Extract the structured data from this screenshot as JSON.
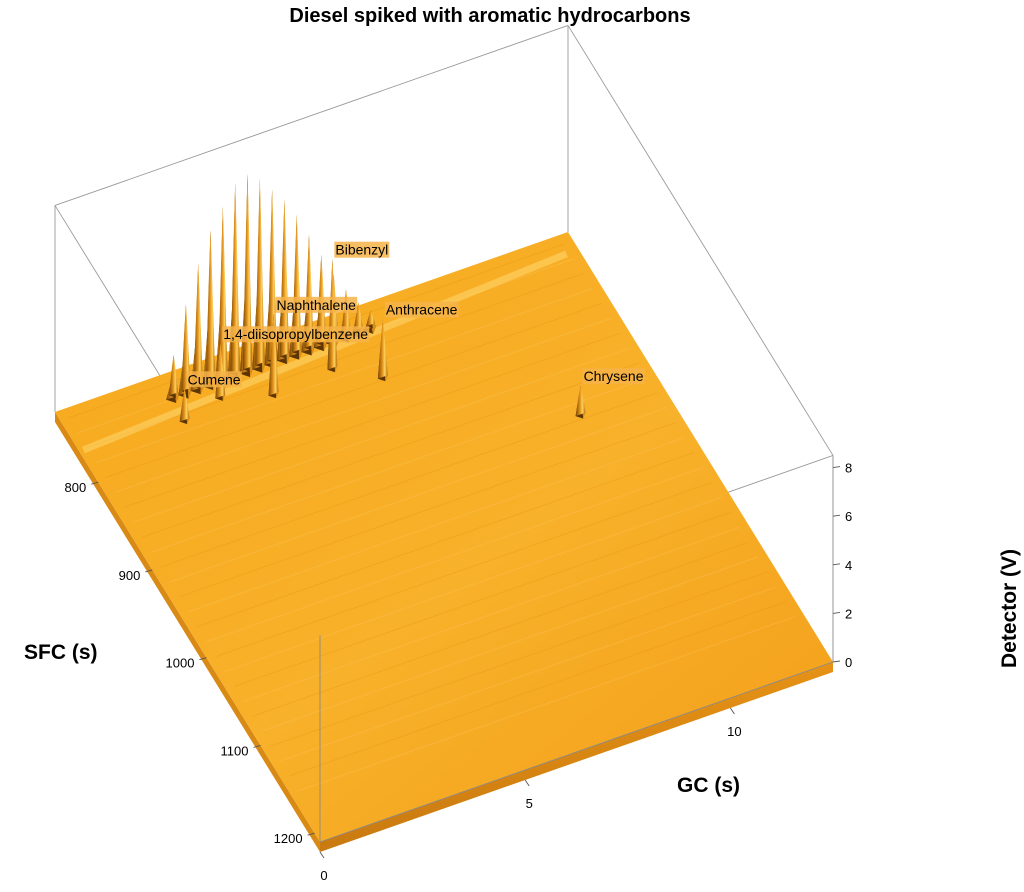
{
  "chart_data": {
    "type": "surface",
    "title": "Diesel spiked with aromatic hydrocarbons",
    "xlabel": "GC (s)",
    "ylabel": "SFC (s)",
    "zlabel": "Detector (V)",
    "x_ticks": [
      0,
      5,
      10
    ],
    "y_ticks": [
      800,
      900,
      1000,
      1100,
      1200
    ],
    "z_ticks": [
      0,
      2,
      4,
      6,
      8
    ],
    "xlim": [
      0,
      12.5
    ],
    "ylim": [
      720,
      1210
    ],
    "zlim": [
      0,
      8.5
    ],
    "surface_color": "#f5a623",
    "annotations": [
      {
        "label": "1,4-diisopropylbenzene",
        "gc": 3.5,
        "sfc": 760,
        "value": 2.2
      },
      {
        "label": "Cumene",
        "gc": 2.5,
        "sfc": 770,
        "value": 1.3
      },
      {
        "label": "Naphthalene",
        "gc": 4.6,
        "sfc": 775,
        "value": 3.3
      },
      {
        "label": "Bibenzyl",
        "gc": 6.1,
        "sfc": 770,
        "value": 4.5
      },
      {
        "label": "Anthracene",
        "gc": 7.0,
        "sfc": 795,
        "value": 2.4
      },
      {
        "label": "Chrysene",
        "gc": 10.5,
        "sfc": 895,
        "value": 1.2
      }
    ],
    "diesel_envelope": {
      "gc": [
        2.6,
        2.9,
        3.2,
        3.5,
        3.8,
        4.1,
        4.4,
        4.7,
        5.0,
        5.3,
        5.6,
        5.9,
        6.2,
        6.5,
        6.8,
        7.1,
        7.4
      ],
      "value": [
        1.6,
        3.5,
        5.0,
        6.2,
        7.0,
        7.8,
        8.0,
        7.6,
        7.0,
        6.4,
        5.6,
        4.6,
        3.6,
        2.6,
        1.8,
        1.1,
        0.6
      ],
      "sfc": 745
    }
  }
}
